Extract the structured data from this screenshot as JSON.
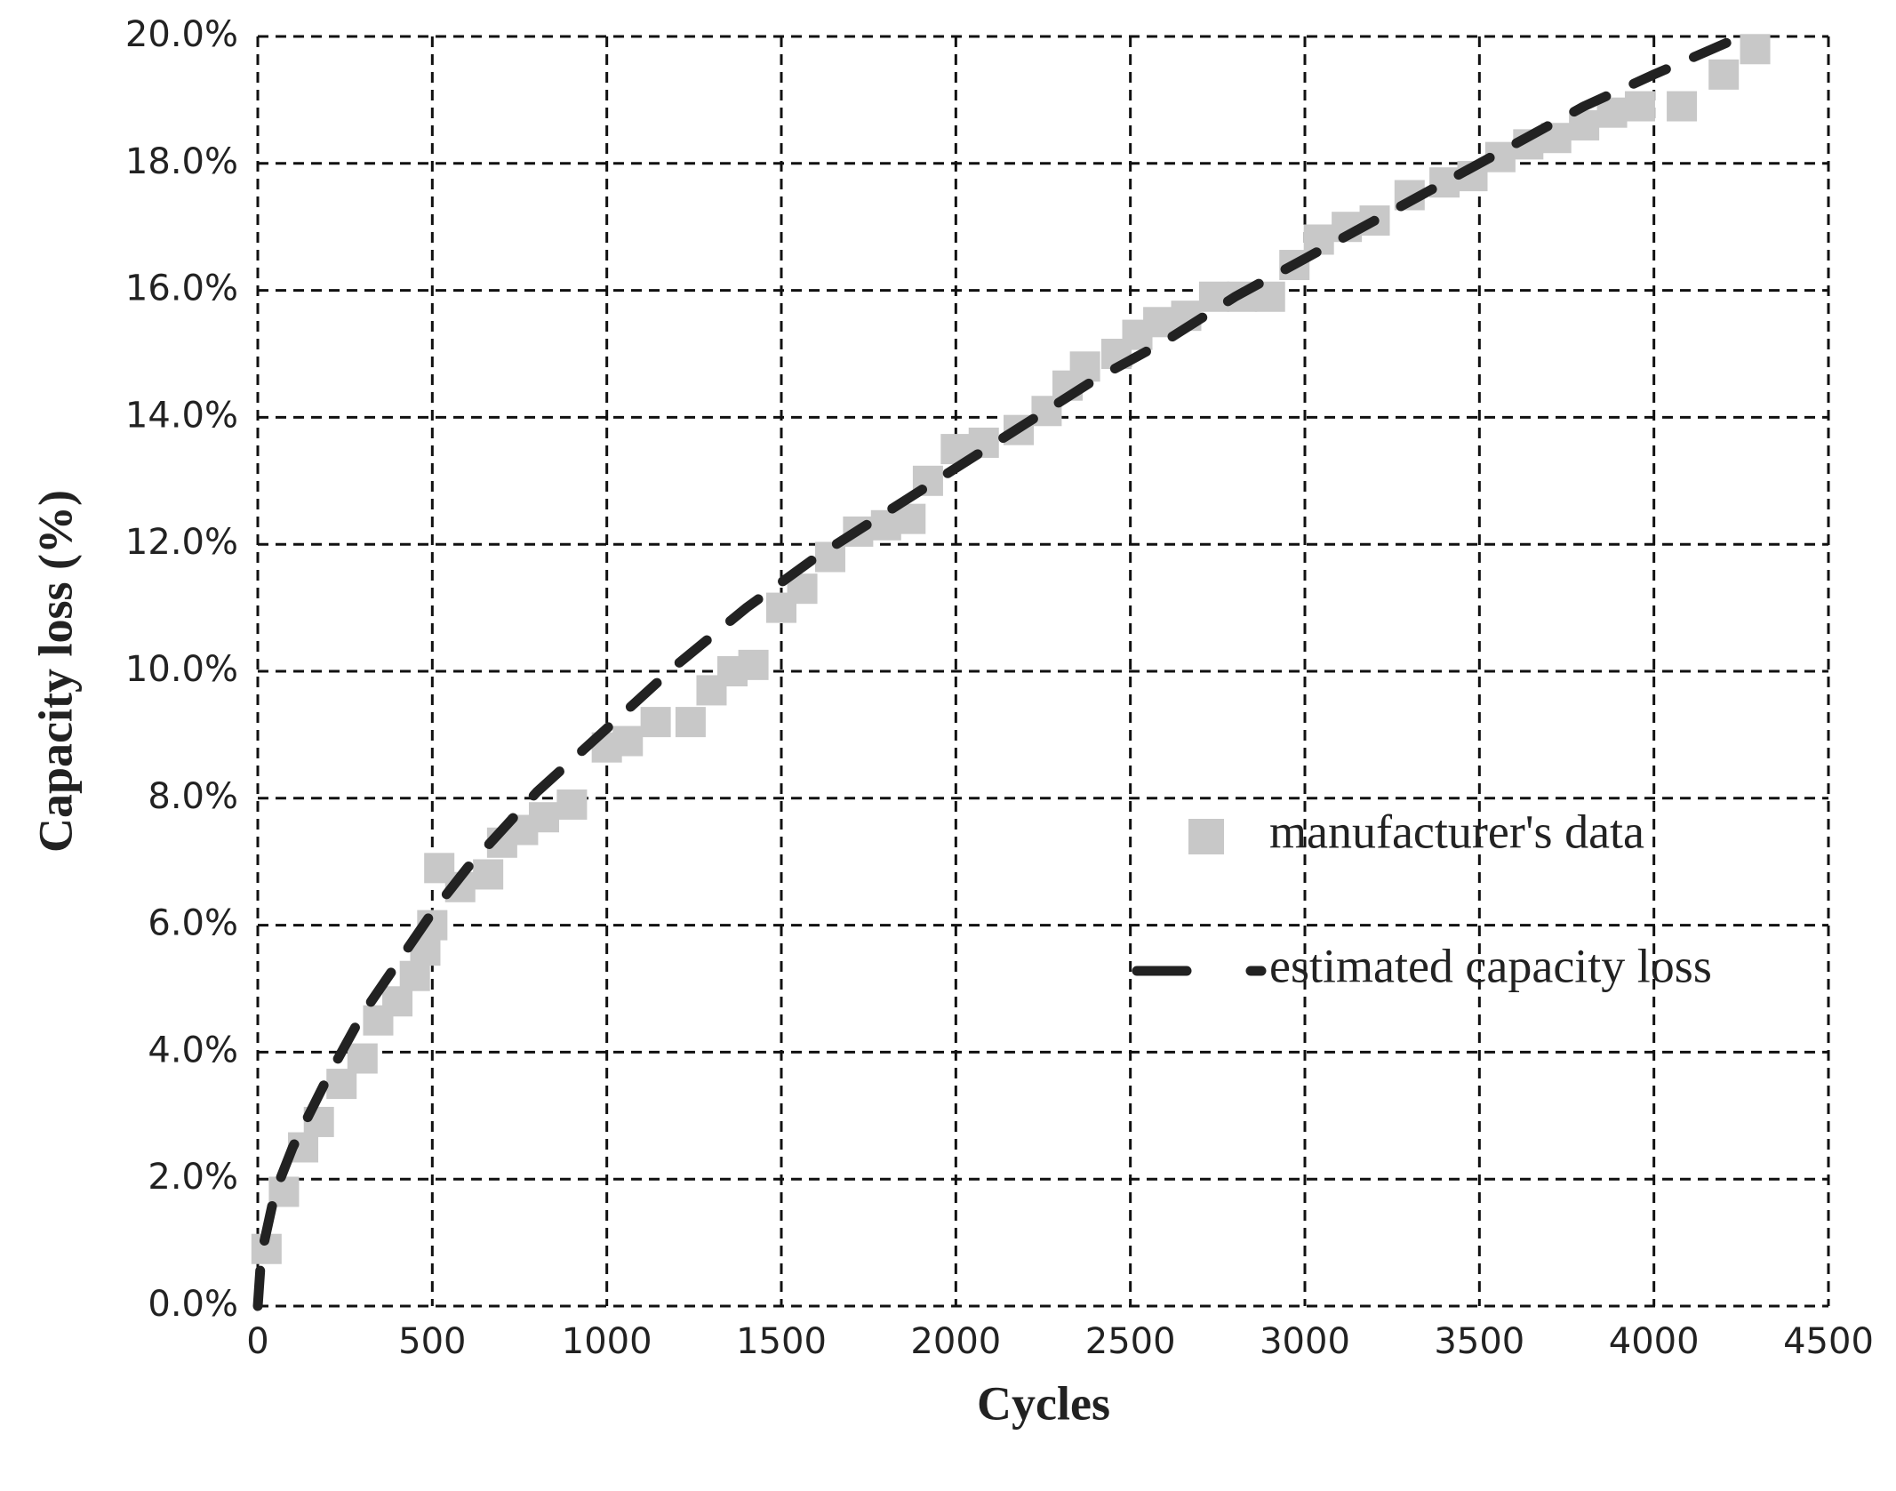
{
  "chart_data": {
    "type": "scatter",
    "x_label": "Cycles",
    "y_label": "Capacity loss (%)",
    "xlim": [
      0,
      4500
    ],
    "xticks": [
      0,
      500,
      1000,
      1500,
      2000,
      2500,
      3000,
      3500,
      4000,
      4500
    ],
    "ylim": [
      0,
      20
    ],
    "yticks": [
      {
        "value": 0,
        "label": "0.0%"
      },
      {
        "value": 2,
        "label": "2.0%"
      },
      {
        "value": 4,
        "label": "4.0%"
      },
      {
        "value": 6,
        "label": "6.0%"
      },
      {
        "value": 8,
        "label": "8.0%"
      },
      {
        "value": 10,
        "label": "10.0%"
      },
      {
        "value": 12,
        "label": "12.0%"
      },
      {
        "value": 14,
        "label": "14.0%"
      },
      {
        "value": 16,
        "label": "16.0%"
      },
      {
        "value": 18,
        "label": "18.0%"
      },
      {
        "value": 20,
        "label": "20.0%"
      }
    ],
    "grid": true,
    "legend": "right",
    "series": [
      {
        "name": "manufacturer's data",
        "type": "scatter",
        "color": "#c8c8c8",
        "x": [
          25,
          75,
          130,
          175,
          240,
          300,
          345,
          400,
          450,
          480,
          500,
          520,
          580,
          660,
          700,
          760,
          820,
          900,
          1000,
          1060,
          1140,
          1240,
          1300,
          1360,
          1420,
          1500,
          1560,
          1640,
          1720,
          1800,
          1870,
          1920,
          2000,
          2080,
          2180,
          2260,
          2320,
          2370,
          2460,
          2520,
          2580,
          2660,
          2740,
          2820,
          2900,
          2970,
          3040,
          3120,
          3200,
          3300,
          3400,
          3480,
          3560,
          3640,
          3720,
          3800,
          3880,
          3960,
          4080,
          4200,
          4290
        ],
        "values": [
          0.9,
          1.8,
          2.5,
          2.9,
          3.5,
          3.9,
          4.5,
          4.8,
          5.2,
          5.6,
          6.0,
          6.9,
          6.6,
          6.8,
          7.3,
          7.5,
          7.7,
          7.9,
          8.8,
          8.9,
          9.2,
          9.2,
          9.7,
          10.0,
          10.1,
          11.0,
          11.3,
          11.8,
          12.2,
          12.3,
          12.4,
          13.0,
          13.5,
          13.6,
          13.8,
          14.1,
          14.5,
          14.8,
          15.0,
          15.3,
          15.5,
          15.6,
          15.9,
          15.9,
          15.9,
          16.4,
          16.8,
          17.0,
          17.1,
          17.5,
          17.7,
          17.8,
          18.1,
          18.3,
          18.4,
          18.6,
          18.8,
          18.9,
          18.9,
          19.4,
          19.8
        ]
      },
      {
        "name": "estimated capacity loss",
        "type": "line",
        "color": "#222222",
        "x": [
          0,
          10,
          50,
          100,
          200,
          300,
          400,
          500,
          600,
          700,
          800,
          1000,
          1200,
          1400,
          1600,
          1800,
          2000,
          2200,
          2400,
          2600,
          2800,
          3000,
          3200,
          3400,
          3600,
          3800,
          4000,
          4250
        ],
        "values": [
          0,
          0.8,
          1.8,
          2.5,
          3.6,
          4.6,
          5.4,
          6.2,
          6.9,
          7.5,
          8.1,
          9.1,
          10.1,
          11.0,
          11.8,
          12.5,
          13.2,
          13.9,
          14.6,
          15.2,
          15.9,
          16.5,
          17.1,
          17.7,
          18.3,
          18.9,
          19.4,
          20.0
        ]
      }
    ]
  }
}
